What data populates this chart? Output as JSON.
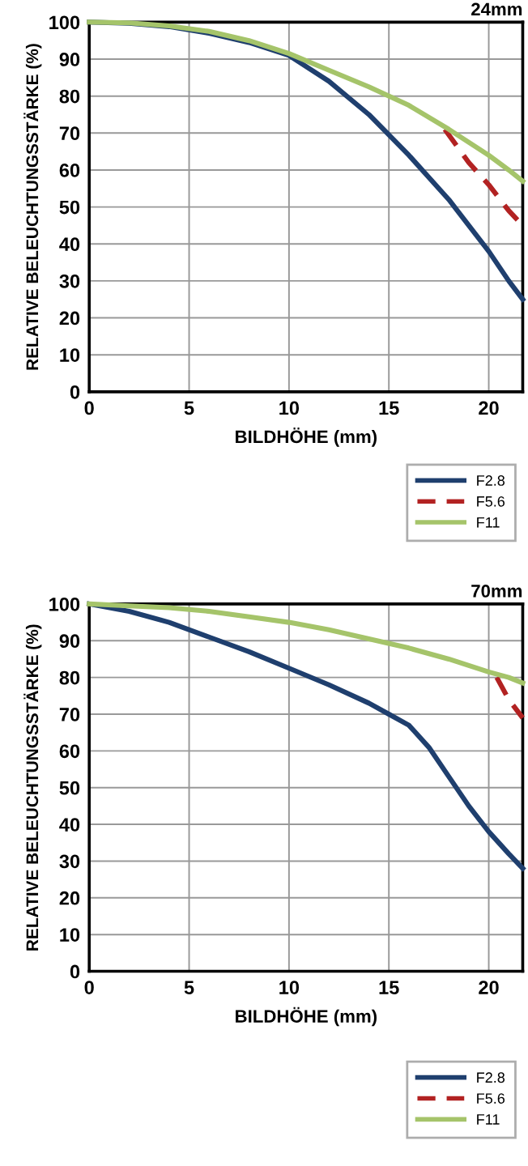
{
  "chart_data": [
    {
      "type": "line",
      "title": "24mm",
      "xlabel": "BILDHÖHE (mm)",
      "ylabel": "RELATIVE BELEUCHTUNGSSTÄRKE (%)",
      "xlim": [
        0,
        21.7
      ],
      "ylim": [
        0,
        100
      ],
      "xticks": [
        0,
        5,
        10,
        15,
        20
      ],
      "yticks": [
        0,
        10,
        20,
        30,
        40,
        50,
        60,
        70,
        80,
        90,
        100
      ],
      "grid": true,
      "legend": "bottom right",
      "series": [
        {
          "name": "F2.8",
          "color": "#1f3f6e",
          "line_style": "solid",
          "x": [
            0,
            2,
            4,
            6,
            8,
            10,
            12,
            14,
            16,
            18,
            20,
            21,
            21.7
          ],
          "values": [
            100,
            99.7,
            98.8,
            97,
            94.5,
            91,
            84,
            75,
            64,
            52,
            38,
            30,
            25
          ]
        },
        {
          "name": "F5.6",
          "color": "#b22222",
          "line_style": "dashed",
          "x": [
            17.8,
            19,
            20,
            21,
            21.7
          ],
          "values": [
            71,
            62,
            56,
            49,
            45
          ]
        },
        {
          "name": "F11",
          "color": "#a5c46a",
          "line_style": "solid",
          "x": [
            0,
            2,
            4,
            6,
            8,
            10,
            12,
            14,
            16,
            18,
            20,
            21,
            21.7
          ],
          "values": [
            100,
            99.8,
            99,
            97.5,
            95,
            91.5,
            87,
            82.5,
            77.5,
            71,
            64,
            60,
            57
          ]
        }
      ]
    },
    {
      "type": "line",
      "title": "70mm",
      "xlabel": "BILDHÖHE (mm)",
      "ylabel": "RELATIVE BELEUCHTUNGSSTÄRKE (%)",
      "xlim": [
        0,
        21.7
      ],
      "ylim": [
        0,
        100
      ],
      "xticks": [
        0,
        5,
        10,
        15,
        20
      ],
      "yticks": [
        0,
        10,
        20,
        30,
        40,
        50,
        60,
        70,
        80,
        90,
        100
      ],
      "grid": true,
      "legend": "bottom right",
      "series": [
        {
          "name": "F2.8",
          "color": "#1f3f6e",
          "line_style": "solid",
          "x": [
            0,
            2,
            4,
            6,
            8,
            10,
            12,
            14,
            15,
            16,
            17,
            18,
            19,
            20,
            21,
            21.7
          ],
          "values": [
            100,
            98,
            95,
            91,
            87,
            82.5,
            78,
            73,
            70,
            67,
            61,
            53,
            45,
            38,
            32,
            28
          ]
        },
        {
          "name": "F5.6",
          "color": "#b22222",
          "line_style": "dashed",
          "x": [
            20.4,
            21,
            21.7
          ],
          "values": [
            80,
            74,
            69
          ]
        },
        {
          "name": "F11",
          "color": "#a5c46a",
          "line_style": "solid",
          "x": [
            0,
            2,
            4,
            6,
            8,
            10,
            12,
            14,
            16,
            18,
            20,
            21,
            21.7
          ],
          "values": [
            100,
            99.5,
            99,
            98,
            96.5,
            95,
            93,
            90.5,
            88,
            85,
            81.5,
            80,
            78.5
          ]
        }
      ]
    }
  ]
}
